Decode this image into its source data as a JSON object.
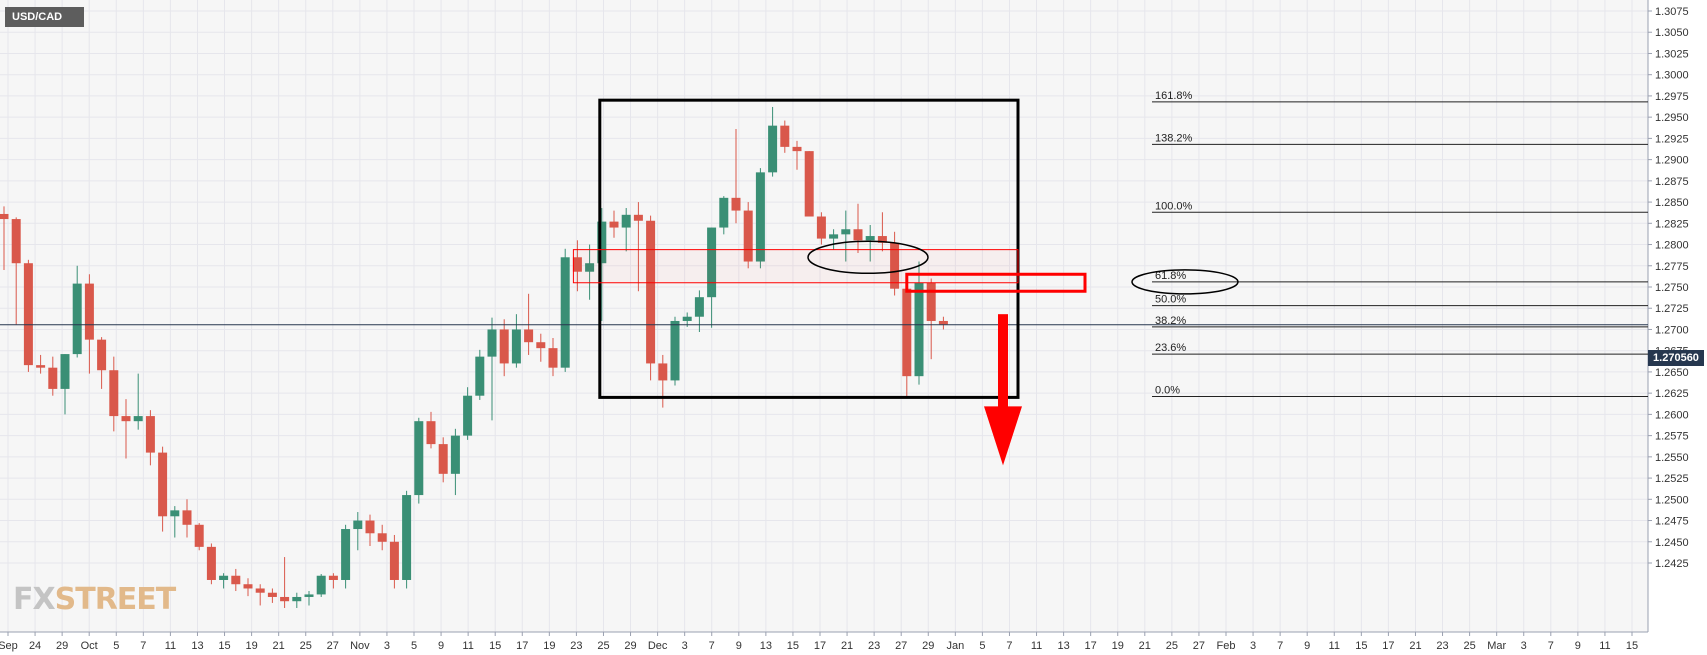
{
  "symbol": "USD/CAD",
  "watermark": {
    "part1": "FX",
    "part2": "STREET"
  },
  "last_price": "1.270560",
  "chart_data": {
    "type": "candlestick",
    "interval": "daily",
    "y_axis": {
      "side": "right",
      "range": [
        1.24,
        1.309
      ],
      "ticks": [
        "1.3075",
        "1.3050",
        "1.3025",
        "1.3000",
        "1.2975",
        "1.2950",
        "1.2925",
        "1.2900",
        "1.2875",
        "1.2850",
        "1.2825",
        "1.2800",
        "1.2775",
        "1.2750",
        "1.2725",
        "1.2700",
        "1.2675",
        "1.2650",
        "1.2625",
        "1.2600",
        "1.2575",
        "1.2550",
        "1.2525",
        "1.2500",
        "1.2475",
        "1.2450",
        "1.2425"
      ]
    },
    "x_axis_labels": [
      "Sep",
      "24",
      "29",
      "Oct",
      "5",
      "7",
      "11",
      "13",
      "15",
      "19",
      "21",
      "25",
      "27",
      "Nov",
      "3",
      "5",
      "9",
      "11",
      "15",
      "17",
      "19",
      "23",
      "25",
      "29",
      "Dec",
      "3",
      "7",
      "9",
      "13",
      "15",
      "17",
      "21",
      "23",
      "27",
      "29",
      "Jan",
      "5",
      "7",
      "11",
      "13",
      "17",
      "19",
      "21",
      "25",
      "27",
      "Feb",
      "3",
      "7",
      "9",
      "11",
      "15",
      "17",
      "21",
      "23",
      "25",
      "Mar",
      "3",
      "7",
      "9",
      "11",
      "15"
    ],
    "candles": [
      {
        "o": 1.2836,
        "h": 1.2845,
        "l": 1.277,
        "c": 1.283
      },
      {
        "o": 1.283,
        "h": 1.2832,
        "l": 1.2706,
        "c": 1.2778
      },
      {
        "o": 1.2778,
        "h": 1.2782,
        "l": 1.265,
        "c": 1.2658
      },
      {
        "o": 1.2658,
        "h": 1.267,
        "l": 1.2648,
        "c": 1.2655
      },
      {
        "o": 1.2655,
        "h": 1.2668,
        "l": 1.2622,
        "c": 1.263
      },
      {
        "o": 1.263,
        "h": 1.2671,
        "l": 1.26,
        "c": 1.2671
      },
      {
        "o": 1.2671,
        "h": 1.2775,
        "l": 1.2667,
        "c": 1.2754
      },
      {
        "o": 1.2754,
        "h": 1.2765,
        "l": 1.2648,
        "c": 1.2688
      },
      {
        "o": 1.2688,
        "h": 1.2691,
        "l": 1.263,
        "c": 1.2652
      },
      {
        "o": 1.2652,
        "h": 1.2668,
        "l": 1.258,
        "c": 1.2598
      },
      {
        "o": 1.2598,
        "h": 1.2618,
        "l": 1.2548,
        "c": 1.2592
      },
      {
        "o": 1.2592,
        "h": 1.2648,
        "l": 1.2582,
        "c": 1.2598
      },
      {
        "o": 1.2598,
        "h": 1.2605,
        "l": 1.254,
        "c": 1.2555
      },
      {
        "o": 1.2555,
        "h": 1.2562,
        "l": 1.2462,
        "c": 1.248
      },
      {
        "o": 1.248,
        "h": 1.2492,
        "l": 1.2455,
        "c": 1.2487
      },
      {
        "o": 1.2487,
        "h": 1.25,
        "l": 1.2455,
        "c": 1.247
      },
      {
        "o": 1.247,
        "h": 1.2472,
        "l": 1.244,
        "c": 1.2444
      },
      {
        "o": 1.2444,
        "h": 1.2448,
        "l": 1.24,
        "c": 1.2405
      },
      {
        "o": 1.2405,
        "h": 1.2413,
        "l": 1.2395,
        "c": 1.241
      },
      {
        "o": 1.241,
        "h": 1.2418,
        "l": 1.2392,
        "c": 1.24
      },
      {
        "o": 1.24,
        "h": 1.2407,
        "l": 1.2386,
        "c": 1.2395
      },
      {
        "o": 1.2395,
        "h": 1.24,
        "l": 1.2375,
        "c": 1.239
      },
      {
        "o": 1.239,
        "h": 1.2395,
        "l": 1.2378,
        "c": 1.2385
      },
      {
        "o": 1.2385,
        "h": 1.2432,
        "l": 1.2372,
        "c": 1.238
      },
      {
        "o": 1.238,
        "h": 1.239,
        "l": 1.2372,
        "c": 1.2385
      },
      {
        "o": 1.2385,
        "h": 1.2392,
        "l": 1.2375,
        "c": 1.2388
      },
      {
        "o": 1.2388,
        "h": 1.2412,
        "l": 1.2385,
        "c": 1.241
      },
      {
        "o": 1.241,
        "h": 1.2413,
        "l": 1.2395,
        "c": 1.2405
      },
      {
        "o": 1.2405,
        "h": 1.247,
        "l": 1.2395,
        "c": 1.2465
      },
      {
        "o": 1.2465,
        "h": 1.2485,
        "l": 1.244,
        "c": 1.2475
      },
      {
        "o": 1.2475,
        "h": 1.2482,
        "l": 1.2445,
        "c": 1.246
      },
      {
        "o": 1.246,
        "h": 1.247,
        "l": 1.244,
        "c": 1.245
      },
      {
        "o": 1.245,
        "h": 1.2458,
        "l": 1.2395,
        "c": 1.2405
      },
      {
        "o": 1.2405,
        "h": 1.251,
        "l": 1.2395,
        "c": 1.2505
      },
      {
        "o": 1.2505,
        "h": 1.2596,
        "l": 1.2495,
        "c": 1.2592
      },
      {
        "o": 1.2592,
        "h": 1.2603,
        "l": 1.256,
        "c": 1.2565
      },
      {
        "o": 1.2565,
        "h": 1.2573,
        "l": 1.252,
        "c": 1.253
      },
      {
        "o": 1.253,
        "h": 1.2583,
        "l": 1.2505,
        "c": 1.2575
      },
      {
        "o": 1.2575,
        "h": 1.2632,
        "l": 1.257,
        "c": 1.2622
      },
      {
        "o": 1.2622,
        "h": 1.2676,
        "l": 1.2617,
        "c": 1.2668
      },
      {
        "o": 1.2668,
        "h": 1.2714,
        "l": 1.2593,
        "c": 1.27
      },
      {
        "o": 1.27,
        "h": 1.2712,
        "l": 1.2645,
        "c": 1.266
      },
      {
        "o": 1.266,
        "h": 1.2718,
        "l": 1.2655,
        "c": 1.27
      },
      {
        "o": 1.27,
        "h": 1.2742,
        "l": 1.267,
        "c": 1.2685
      },
      {
        "o": 1.2685,
        "h": 1.2695,
        "l": 1.2662,
        "c": 1.2678
      },
      {
        "o": 1.2678,
        "h": 1.269,
        "l": 1.2645,
        "c": 1.2655
      },
      {
        "o": 1.2655,
        "h": 1.2795,
        "l": 1.265,
        "c": 1.2785
      },
      {
        "o": 1.2785,
        "h": 1.2805,
        "l": 1.2745,
        "c": 1.2768
      },
      {
        "o": 1.2768,
        "h": 1.28,
        "l": 1.2735,
        "c": 1.2778
      },
      {
        "o": 1.2778,
        "h": 1.2843,
        "l": 1.271,
        "c": 1.2827
      },
      {
        "o": 1.2827,
        "h": 1.284,
        "l": 1.2808,
        "c": 1.282
      },
      {
        "o": 1.282,
        "h": 1.2843,
        "l": 1.2792,
        "c": 1.2835
      },
      {
        "o": 1.2835,
        "h": 1.285,
        "l": 1.2745,
        "c": 1.2828
      },
      {
        "o": 1.2828,
        "h": 1.2834,
        "l": 1.264,
        "c": 1.266
      },
      {
        "o": 1.266,
        "h": 1.267,
        "l": 1.2608,
        "c": 1.264
      },
      {
        "o": 1.264,
        "h": 1.2715,
        "l": 1.2634,
        "c": 1.271
      },
      {
        "o": 1.271,
        "h": 1.272,
        "l": 1.2703,
        "c": 1.2715
      },
      {
        "o": 1.2715,
        "h": 1.2746,
        "l": 1.2697,
        "c": 1.2738
      },
      {
        "o": 1.2738,
        "h": 1.282,
        "l": 1.2702,
        "c": 1.282
      },
      {
        "o": 1.282,
        "h": 1.2857,
        "l": 1.2812,
        "c": 1.2855
      },
      {
        "o": 1.2855,
        "h": 1.2936,
        "l": 1.2825,
        "c": 1.284
      },
      {
        "o": 1.284,
        "h": 1.285,
        "l": 1.2772,
        "c": 1.278
      },
      {
        "o": 1.278,
        "h": 1.289,
        "l": 1.2772,
        "c": 1.2885
      },
      {
        "o": 1.2885,
        "h": 1.2962,
        "l": 1.288,
        "c": 1.294
      },
      {
        "o": 1.294,
        "h": 1.2946,
        "l": 1.2908,
        "c": 1.2915
      },
      {
        "o": 1.2915,
        "h": 1.2922,
        "l": 1.2888,
        "c": 1.291
      },
      {
        "o": 1.291,
        "h": 1.291,
        "l": 1.2833,
        "c": 1.2833
      },
      {
        "o": 1.2833,
        "h": 1.2838,
        "l": 1.28,
        "c": 1.2807
      },
      {
        "o": 1.2807,
        "h": 1.2818,
        "l": 1.2794,
        "c": 1.2812
      },
      {
        "o": 1.2812,
        "h": 1.284,
        "l": 1.278,
        "c": 1.2818
      },
      {
        "o": 1.2818,
        "h": 1.2848,
        "l": 1.279,
        "c": 1.2805
      },
      {
        "o": 1.2805,
        "h": 1.2823,
        "l": 1.278,
        "c": 1.281
      },
      {
        "o": 1.281,
        "h": 1.2838,
        "l": 1.2792,
        "c": 1.2802
      },
      {
        "o": 1.2802,
        "h": 1.2815,
        "l": 1.274,
        "c": 1.2748
      },
      {
        "o": 1.2748,
        "h": 1.276,
        "l": 1.262,
        "c": 1.2645
      },
      {
        "o": 1.2645,
        "h": 1.278,
        "l": 1.2635,
        "c": 1.2755
      },
      {
        "o": 1.2755,
        "h": 1.276,
        "l": 1.2665,
        "c": 1.271
      },
      {
        "o": 1.271,
        "h": 1.2715,
        "l": 1.27,
        "c": 1.2706
      }
    ],
    "fibonacci": [
      {
        "label": "161.8%",
        "value": 1.2968
      },
      {
        "label": "138.2%",
        "value": 1.2918
      },
      {
        "label": "100.0%",
        "value": 1.2838
      },
      {
        "label": "61.8%",
        "value": 1.2756
      },
      {
        "label": "50.0%",
        "value": 1.2728
      },
      {
        "label": "38.2%",
        "value": 1.2703
      },
      {
        "label": "23.6%",
        "value": 1.2671
      },
      {
        "label": "0.0%",
        "value": 1.2621
      }
    ],
    "current_price": 1.27056,
    "annotations": {
      "box": {
        "date_from": "Dec 15",
        "date_to": "Jan 11",
        "price_high": 1.297,
        "price_low": 1.262
      },
      "support_zone": {
        "date_from": "Dec 13",
        "date_to": "Jan 11",
        "price_high": 1.2794,
        "price_low": 1.2755
      },
      "fib_zone": {
        "date_from": "Jan 1",
        "date_to": "Jan 20",
        "price_high": 1.2765,
        "price_low": 1.2745
      },
      "ellipse_1": {
        "date": "Dec 31",
        "price": 1.2785
      },
      "ellipse_2": {
        "label": "61.8%",
        "price": 1.2756
      },
      "arrow": {
        "date": "Jan 10",
        "price_from": 1.2718,
        "price_to": 1.254
      }
    },
    "colors": {
      "up": "#3a8f75",
      "down": "#d9584b",
      "fib_line": "#222222",
      "annotation": "#000000",
      "highlight": "#ff0000",
      "price_tag": "#26374f"
    }
  }
}
